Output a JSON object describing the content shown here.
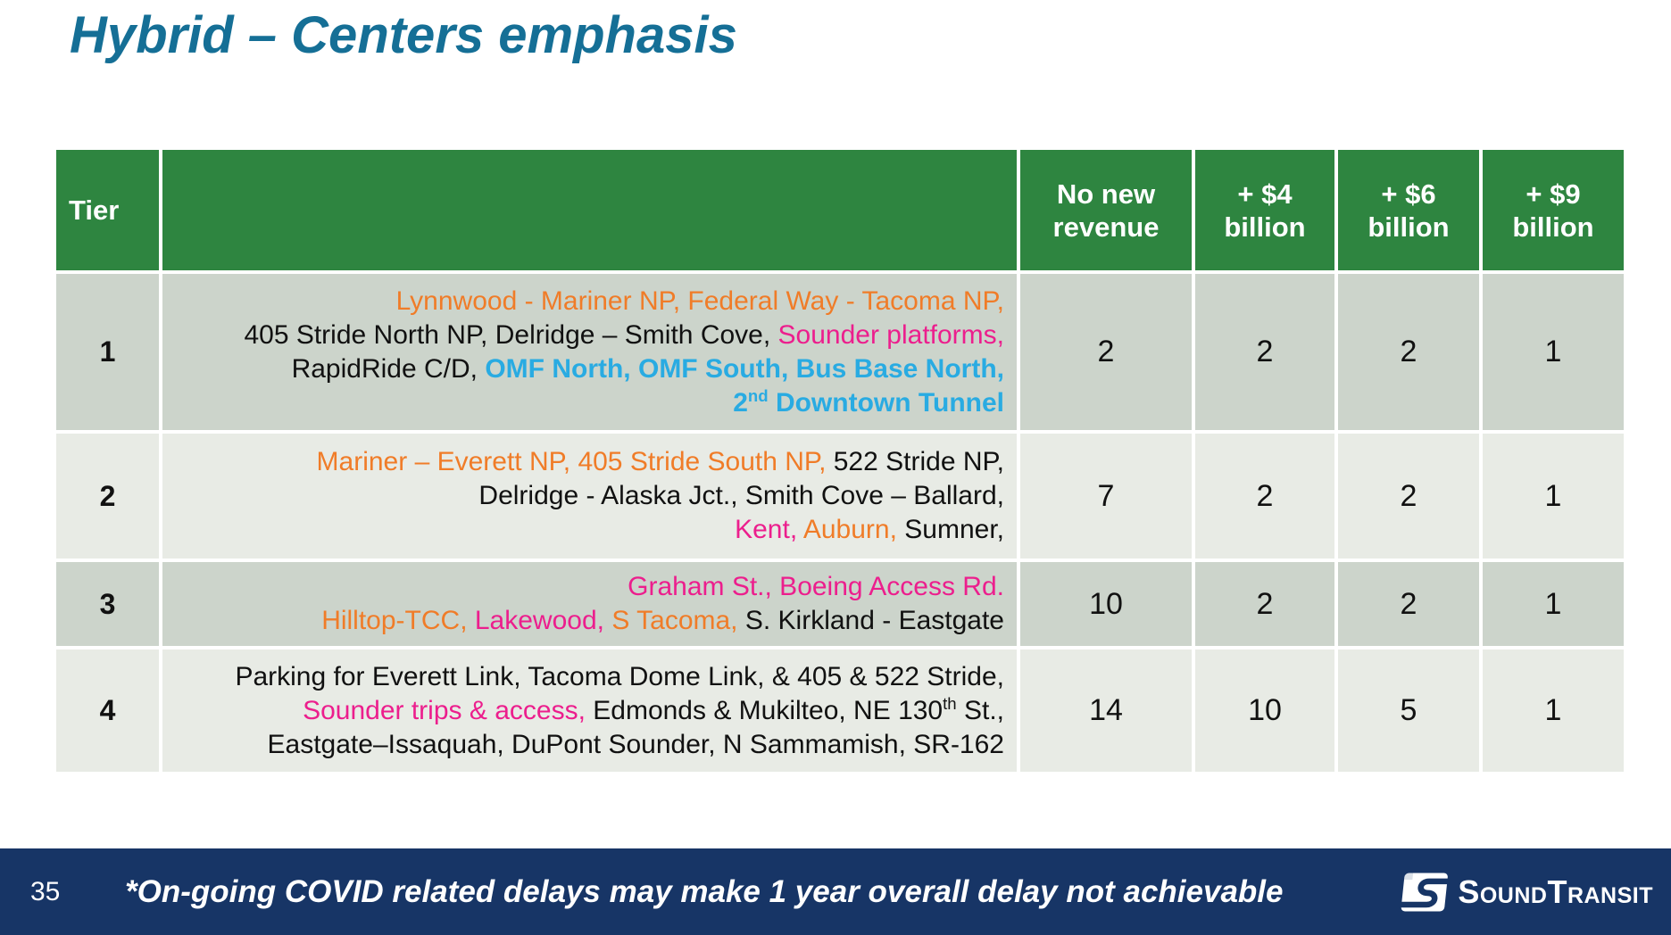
{
  "slide": {
    "title": "Hybrid – Centers emphasis",
    "page_number": "35",
    "footnote": "*On-going COVID related delays may make 1 year overall delay not achievable",
    "logo": {
      "name": "sound-transit-logo",
      "text_parts": {
        "s1": "S",
        "ound": "OUND",
        "t1": "T",
        "ransit": "RANSIT"
      }
    }
  },
  "colors": {
    "title": "#156F96",
    "green": "#2E8540",
    "rowdark": "#CCD4CB",
    "rowlight": "#E8EBE5",
    "navy": "#173566",
    "orange": "#F07C28",
    "pink": "#EC1E8D",
    "cyan": "#29ABE2"
  },
  "table": {
    "header": {
      "tier_label": "Tier",
      "projects_label": "",
      "value_columns": [
        [
          "No new",
          "revenue"
        ],
        [
          "+ $4",
          "billion"
        ],
        [
          "+ $6",
          "billion"
        ],
        [
          "+ $9",
          "billion"
        ]
      ]
    },
    "rows": [
      {
        "tier": "1",
        "lines": [
          [
            {
              "text": "Lynnwood - Mariner NP, Federal Way - Tacoma NP,",
              "color": "orange"
            }
          ],
          [
            {
              "text": "405 Stride North NP, Delridge – Smith Cove, "
            },
            {
              "text": "Sounder platforms,",
              "color": "pink"
            }
          ],
          [
            {
              "text": "RapidRide C/D, "
            },
            {
              "text": "OMF North, OMF South, Bus Base North,",
              "color": "cyan",
              "bold": true
            }
          ],
          [
            {
              "text": "2",
              "color": "cyan",
              "bold": true
            },
            {
              "text": "nd",
              "color": "cyan",
              "bold": true,
              "sup": true
            },
            {
              "text": " Downtown Tunnel",
              "color": "cyan",
              "bold": true
            }
          ]
        ],
        "values": [
          "2",
          "2",
          "2",
          "1"
        ]
      },
      {
        "tier": "2",
        "lines": [
          [
            {
              "text": "Mariner – Everett NP, 405 Stride South NP, ",
              "color": "orange"
            },
            {
              "text": "522 Stride NP,"
            }
          ],
          [
            {
              "text": "Delridge - Alaska Jct., Smith Cove – Ballard,"
            }
          ],
          [
            {
              "text": "Kent,",
              "color": "pink"
            },
            {
              "text": " "
            },
            {
              "text": "Auburn,",
              "color": "orange"
            },
            {
              "text": " Sumner,"
            }
          ]
        ],
        "values": [
          "7",
          "2",
          "2",
          "1"
        ]
      },
      {
        "tier": "3",
        "lines": [
          [
            {
              "text": "Graham St., Boeing Access Rd.",
              "color": "pink"
            }
          ],
          [
            {
              "text": "Hilltop-TCC, ",
              "color": "orange"
            },
            {
              "text": "Lakewood, ",
              "color": "pink"
            },
            {
              "text": "S Tacoma,",
              "color": "orange"
            },
            {
              "text": " S. Kirkland - Eastgate"
            }
          ]
        ],
        "values": [
          "10",
          "2",
          "2",
          "1"
        ]
      },
      {
        "tier": "4",
        "lines": [
          [
            {
              "text": "Parking for Everett Link, Tacoma Dome Link, & 405 & 522 Stride,"
            }
          ],
          [
            {
              "text": "Sounder trips & access,",
              "color": "pink"
            },
            {
              "text": " Edmonds & Mukilteo, NE 130"
            },
            {
              "text": "th",
              "sup": true
            },
            {
              "text": " St.,"
            }
          ],
          [
            {
              "text": "Eastgate–Issaquah, DuPont Sounder, N Sammamish, SR-162"
            }
          ]
        ],
        "values": [
          "14",
          "10",
          "5",
          "1"
        ]
      }
    ]
  }
}
